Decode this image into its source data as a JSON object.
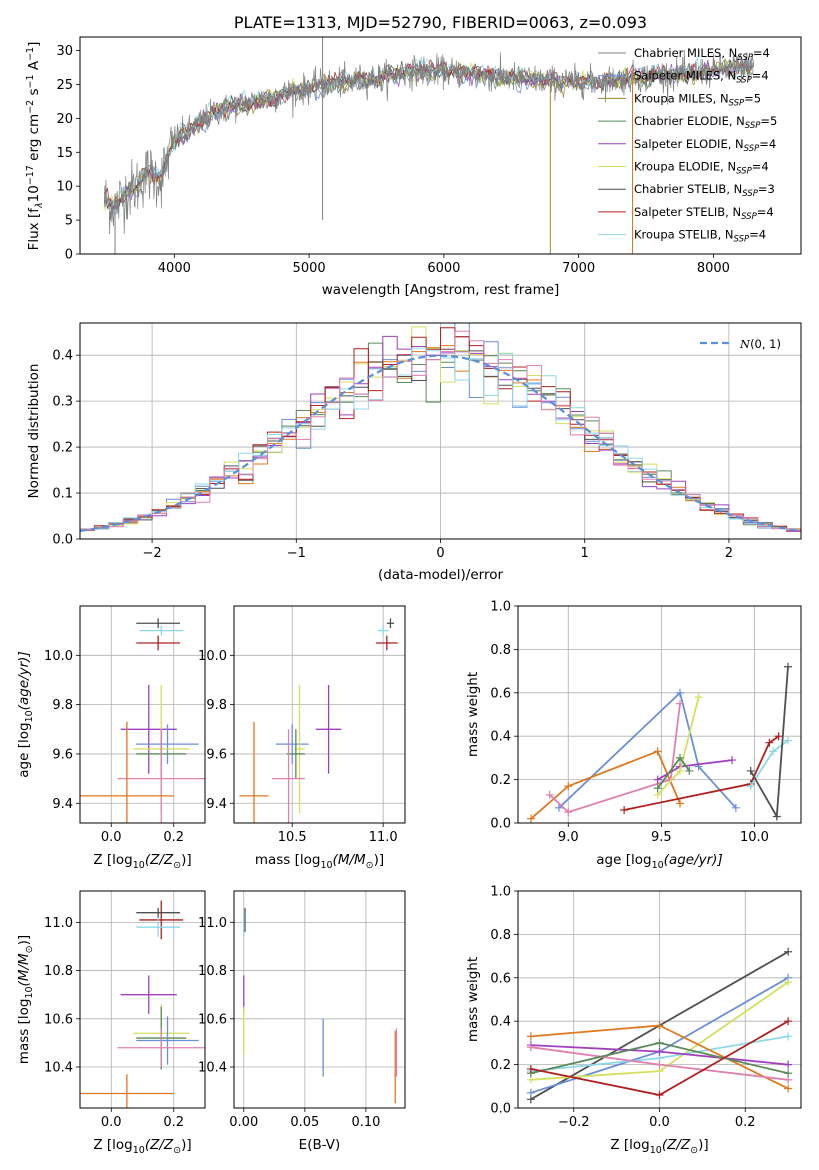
{
  "chart_data": [
    {
      "type": "line",
      "title": "PLATE=1313, MJD=52790, FIBERID=0063, z=0.093",
      "xlabel": "wavelength [Angstrom, rest frame]",
      "ylabel": "Flux [f_λ 10^-17 erg cm^-2 s^-1 A^-1]",
      "ylabel_parts": [
        "Flux [f",
        "λ",
        "10",
        "−17",
        " erg cm",
        "−2",
        " s",
        "−1",
        " A",
        "−1",
        "]"
      ],
      "xlim": [
        3300,
        8650
      ],
      "ylim": [
        0,
        32
      ],
      "xticks": [
        4000,
        5000,
        6000,
        7000,
        8000
      ],
      "yticks": [
        0,
        5,
        10,
        15,
        20,
        25,
        30
      ],
      "grid": false,
      "legend_placement": "upper-right",
      "series": [
        {
          "name": "Chabrier MILES, N_SSP=4",
          "label_main": "Chabrier MILES, N",
          "label_sub": "SSP",
          "label_tail": "=4",
          "color": "#808080"
        },
        {
          "name": "Salpeter MILES, N_SSP=4",
          "label_main": "Salpeter MILES, N",
          "label_sub": "SSP",
          "label_tail": "=4",
          "color": "#6a8fd8"
        },
        {
          "name": "Kroupa MILES, N_SSP=5",
          "label_main": "Kroupa MILES, N",
          "label_sub": "SSP",
          "label_tail": "=5",
          "color": "#9a8a28"
        },
        {
          "name": "Chabrier ELODIE, N_SSP=5",
          "label_main": "Chabrier ELODIE, N",
          "label_sub": "SSP",
          "label_tail": "=5",
          "color": "#5a8a5a"
        },
        {
          "name": "Salpeter ELODIE, N_SSP=4",
          "label_main": "Salpeter ELODIE, N",
          "label_sub": "SSP",
          "label_tail": "=4",
          "color": "#a040c0"
        },
        {
          "name": "Kroupa ELODIE, N_SSP=4",
          "label_main": "Kroupa ELODIE, N",
          "label_sub": "SSP",
          "label_tail": "=4",
          "color": "#d4e060"
        },
        {
          "name": "Chabrier STELIB, N_SSP=3",
          "label_main": "Chabrier STELIB, N",
          "label_sub": "SSP",
          "label_tail": "=3",
          "color": "#505050"
        },
        {
          "name": "Salpeter STELIB, N_SSP=4",
          "label_main": "Salpeter STELIB, N",
          "label_sub": "SSP",
          "label_tail": "=4",
          "color": "#b02020"
        },
        {
          "name": "Kroupa STELIB, N_SSP=4",
          "label_main": "Kroupa STELIB, N",
          "label_sub": "SSP",
          "label_tail": "=4",
          "color": "#8ed8e8"
        }
      ],
      "continuum": [
        [
          3480,
          8
        ],
        [
          3560,
          7
        ],
        [
          3640,
          9
        ],
        [
          3720,
          10
        ],
        [
          3800,
          12
        ],
        [
          3900,
          11
        ],
        [
          4000,
          17
        ],
        [
          4100,
          18
        ],
        [
          4300,
          21
        ],
        [
          4500,
          22
        ],
        [
          4700,
          23
        ],
        [
          4900,
          24
        ],
        [
          5100,
          25
        ],
        [
          5300,
          25.5
        ],
        [
          5500,
          26
        ],
        [
          5800,
          27
        ],
        [
          6000,
          27
        ],
        [
          6200,
          26.5
        ],
        [
          6500,
          26
        ],
        [
          6800,
          25.5
        ],
        [
          7000,
          25.5
        ],
        [
          7200,
          25.5
        ],
        [
          7400,
          26
        ],
        [
          7700,
          26.5
        ],
        [
          8000,
          27
        ],
        [
          8200,
          27.5
        ],
        [
          8300,
          27.8
        ]
      ]
    },
    {
      "type": "step",
      "xlabel": "(data-model)/error",
      "ylabel": "Normed distribution",
      "xlim": [
        -2.5,
        2.5
      ],
      "ylim": [
        0,
        0.47
      ],
      "xticks": [
        -2,
        -1,
        0,
        1,
        2
      ],
      "xtick_labels": [
        "−2",
        "−1",
        "0",
        "1",
        "2"
      ],
      "yticks": [
        0.0,
        0.1,
        0.2,
        0.3,
        0.4
      ],
      "ytick_labels": [
        "0.0",
        "0.1",
        "0.2",
        "0.3",
        "0.4"
      ],
      "grid": true,
      "legend_placement": "upper-right",
      "legend": "N(0,1)",
      "reference_curve": "standard normal",
      "reference_color": "#5b8fd9",
      "bin_width": 0.1
    },
    {
      "type": "scatter",
      "xlabel": "Z [log10(Z/Z⊙)]",
      "xlabel_main": "Z [log",
      "xlabel_rest": "(Z/Z",
      "xlabel_end": ")]",
      "ylabel": "age [log10(age/yr)]",
      "xlim": [
        -0.1,
        0.3
      ],
      "ylim": [
        9.32,
        10.2
      ],
      "xticks": [
        0.0,
        0.2
      ],
      "xtick_labels": [
        "0.0",
        "0.2"
      ],
      "yticks": [
        9.4,
        9.6,
        9.8,
        10.0
      ],
      "ytick_labels": [
        "9.4",
        "9.6",
        "9.8",
        "10.0"
      ],
      "grid": true,
      "points": [
        {
          "x": 0.15,
          "y": 10.13,
          "xerr": 0.07,
          "yerr": 0.02,
          "color": "#505050"
        },
        {
          "x": 0.16,
          "y": 10.1,
          "xerr": 0.07,
          "yerr": 0.02,
          "color": "#8ed8e8"
        },
        {
          "x": 0.15,
          "y": 10.05,
          "xerr": 0.07,
          "yerr": 0.03,
          "color": "#b02020"
        },
        {
          "x": 0.12,
          "y": 9.7,
          "xerr": 0.09,
          "yerr": 0.18,
          "color": "#a040c0"
        },
        {
          "x": 0.18,
          "y": 9.64,
          "xerr": 0.1,
          "yerr": 0.08,
          "color": "#6a8fd8"
        },
        {
          "x": 0.16,
          "y": 9.62,
          "xerr": 0.09,
          "yerr": 0.26,
          "color": "#d4e060"
        },
        {
          "x": 0.16,
          "y": 9.6,
          "xerr": 0.08,
          "yerr": 0.1,
          "color": "#5a8a5a"
        },
        {
          "x": 0.16,
          "y": 9.5,
          "xerr": 0.14,
          "yerr": 0.2,
          "color": "#e080b0"
        },
        {
          "x": 0.05,
          "y": 9.43,
          "xerr": 0.15,
          "yerr": 0.3,
          "color": "#e07820"
        }
      ]
    },
    {
      "type": "scatter",
      "xlabel": "mass [log10(M/M⊙)]",
      "xlabel_main": "mass [log",
      "xlabel_rest": "(M/M",
      "xlabel_end": ")]",
      "xlim": [
        10.18,
        11.12
      ],
      "ylim": [
        9.32,
        10.2
      ],
      "xticks": [
        10.5,
        11.0
      ],
      "xtick_labels": [
        "10.5",
        "11.0"
      ],
      "yticks": [
        9.4,
        9.6,
        9.8,
        10.0
      ],
      "ytick_labels": [
        "9.4",
        "9.6",
        "9.8",
        "10.0"
      ],
      "grid": true,
      "points": [
        {
          "x": 11.04,
          "y": 10.13,
          "xerr": 0.02,
          "yerr": 0.02,
          "color": "#505050"
        },
        {
          "x": 11.0,
          "y": 10.1,
          "xerr": 0.03,
          "yerr": 0.02,
          "color": "#8ed8e8"
        },
        {
          "x": 11.02,
          "y": 10.05,
          "xerr": 0.06,
          "yerr": 0.03,
          "color": "#b02020"
        },
        {
          "x": 10.7,
          "y": 9.7,
          "xerr": 0.07,
          "yerr": 0.18,
          "color": "#a040c0"
        },
        {
          "x": 10.5,
          "y": 9.64,
          "xerr": 0.09,
          "yerr": 0.08,
          "color": "#6a8fd8"
        },
        {
          "x": 10.54,
          "y": 9.62,
          "xerr": 0.03,
          "yerr": 0.26,
          "color": "#d4e060"
        },
        {
          "x": 10.52,
          "y": 9.6,
          "xerr": 0.05,
          "yerr": 0.1,
          "color": "#5a8a5a"
        },
        {
          "x": 10.48,
          "y": 9.5,
          "xerr": 0.09,
          "yerr": 0.2,
          "color": "#e080b0"
        },
        {
          "x": 10.29,
          "y": 9.43,
          "xerr": 0.08,
          "yerr": 0.3,
          "color": "#e07820"
        }
      ]
    },
    {
      "type": "line",
      "xlabel": "age [log10(age/yr)]",
      "xlabel_main": "age  [log",
      "xlabel_rest": "(age/yr)]",
      "ylabel": "mass weight",
      "xlim": [
        8.73,
        10.25
      ],
      "ylim": [
        0,
        1.0
      ],
      "xticks": [
        9.0,
        9.5,
        10.0
      ],
      "xtick_labels": [
        "9.0",
        "9.5",
        "10.0"
      ],
      "yticks": [
        0,
        0.2,
        0.4,
        0.6,
        0.8,
        1.0
      ],
      "ytick_labels": [
        "0.0",
        "0.2",
        "0.4",
        "0.6",
        "0.8",
        "1.0"
      ],
      "grid": true,
      "series": [
        {
          "color": "#6a8fd8",
          "x": [
            8.95,
            9.6,
            9.7,
            9.9
          ],
          "y": [
            0.07,
            0.6,
            0.26,
            0.07
          ]
        },
        {
          "color": "#e07820",
          "x": [
            8.8,
            9.0,
            9.48,
            9.6
          ],
          "y": [
            0.02,
            0.17,
            0.33,
            0.09
          ]
        },
        {
          "color": "#e080b0",
          "x": [
            8.9,
            9.0,
            9.55,
            9.6
          ],
          "y": [
            0.13,
            0.05,
            0.2,
            0.55
          ]
        },
        {
          "color": "#a040c0",
          "x": [
            9.48,
            9.6,
            9.88
          ],
          "y": [
            0.2,
            0.26,
            0.29
          ]
        },
        {
          "color": "#d4e060",
          "x": [
            9.48,
            9.6,
            9.7
          ],
          "y": [
            0.13,
            0.24,
            0.58
          ]
        },
        {
          "color": "#5a8a5a",
          "x": [
            9.48,
            9.6,
            9.65
          ],
          "y": [
            0.16,
            0.3,
            0.24
          ]
        },
        {
          "color": "#b02020",
          "x": [
            9.3,
            9.98,
            10.08,
            10.13
          ],
          "y": [
            0.06,
            0.18,
            0.37,
            0.4
          ]
        },
        {
          "color": "#8ed8e8",
          "x": [
            9.98,
            10.1,
            10.18
          ],
          "y": [
            0.17,
            0.33,
            0.38
          ]
        },
        {
          "color": "#505050",
          "x": [
            9.98,
            10.12,
            10.18
          ],
          "y": [
            0.24,
            0.03,
            0.72
          ]
        }
      ]
    },
    {
      "type": "scatter",
      "xlabel": "Z [log10(Z/Z⊙)]",
      "xlabel_main": "Z [log",
      "xlabel_rest": "(Z/Z",
      "xlabel_end": ")]",
      "ylabel": "mass [log10(M/M⊙)]",
      "xlim": [
        -0.1,
        0.3
      ],
      "ylim": [
        10.23,
        11.13
      ],
      "xticks": [
        0.0,
        0.2
      ],
      "xtick_labels": [
        "0.0",
        "0.2"
      ],
      "yticks": [
        10.4,
        10.6,
        10.8,
        11.0
      ],
      "ytick_labels": [
        "10.4",
        "10.6",
        "10.8",
        "11.0"
      ],
      "grid": true,
      "points": [
        {
          "x": 0.15,
          "y": 11.04,
          "xerr": 0.07,
          "yerr": 0.02,
          "color": "#505050"
        },
        {
          "x": 0.16,
          "y": 11.01,
          "xerr": 0.07,
          "yerr": 0.08,
          "color": "#b02020"
        },
        {
          "x": 0.15,
          "y": 10.98,
          "xerr": 0.07,
          "yerr": 0.04,
          "color": "#8ed8e8"
        },
        {
          "x": 0.12,
          "y": 10.7,
          "xerr": 0.09,
          "yerr": 0.08,
          "color": "#a040c0"
        },
        {
          "x": 0.16,
          "y": 10.54,
          "xerr": 0.09,
          "yerr": 0.12,
          "color": "#d4e060"
        },
        {
          "x": 0.16,
          "y": 10.52,
          "xerr": 0.08,
          "yerr": 0.13,
          "color": "#5a8a5a"
        },
        {
          "x": 0.18,
          "y": 10.51,
          "xerr": 0.1,
          "yerr": 0.1,
          "color": "#6a8fd8"
        },
        {
          "x": 0.16,
          "y": 10.48,
          "xerr": 0.14,
          "yerr": 0.08,
          "color": "#e080b0"
        },
        {
          "x": 0.05,
          "y": 10.29,
          "xerr": 0.15,
          "yerr": 0.08,
          "color": "#e07820"
        }
      ]
    },
    {
      "type": "scatter",
      "xlabel": "E(B-V)",
      "xlim": [
        -0.008,
        0.132
      ],
      "ylim": [
        10.23,
        11.13
      ],
      "xticks": [
        0.0,
        0.05,
        0.1
      ],
      "xtick_labels": [
        "0.00",
        "0.05",
        "0.10"
      ],
      "yticks": [
        10.4,
        10.6,
        10.8,
        11.0
      ],
      "ytick_labels": [
        "10.4",
        "10.6",
        "10.8",
        "11.0"
      ],
      "grid": true,
      "points": [
        {
          "x": 0.001,
          "y": 11.01,
          "xerr": 0.0,
          "yerr": 0.05,
          "color": "#505050"
        },
        {
          "x": 0.0,
          "y": 10.99,
          "xerr": 0.0,
          "yerr": 0.05,
          "color": "#8ed8e8"
        },
        {
          "x": 0.0,
          "y": 10.7,
          "xerr": 0.0,
          "yerr": 0.08,
          "color": "#a040c0"
        },
        {
          "x": 0.0,
          "y": 10.55,
          "xerr": 0.0,
          "yerr": 0.1,
          "color": "#d4e060"
        },
        {
          "x": 0.065,
          "y": 10.48,
          "xerr": 0.0,
          "yerr": 0.12,
          "color": "#6a8fd8"
        },
        {
          "x": 0.124,
          "y": 10.4,
          "xerr": 0.0,
          "yerr": 0.15,
          "color": "#e07820"
        },
        {
          "x": 0.125,
          "y": 10.46,
          "xerr": 0.0,
          "yerr": 0.1,
          "color": "#e080b0"
        }
      ]
    },
    {
      "type": "line",
      "xlabel": "Z [log10(Z/Z⊙)]",
      "xlabel_main": "Z [log",
      "xlabel_rest": "(Z/Z",
      "xlabel_end": ")]",
      "ylabel": "mass weight",
      "xlim": [
        -0.33,
        0.33
      ],
      "ylim": [
        0,
        1.0
      ],
      "xticks": [
        -0.2,
        0.0,
        0.2
      ],
      "xtick_labels": [
        "−0.2",
        "0.0",
        "0.2"
      ],
      "yticks": [
        0,
        0.2,
        0.4,
        0.6,
        0.8,
        1.0
      ],
      "ytick_labels": [
        "0.0",
        "0.2",
        "0.4",
        "0.6",
        "0.8",
        "1.0"
      ],
      "grid": true,
      "series": [
        {
          "color": "#505050",
          "x": [
            -0.3,
            0.0,
            0.3
          ],
          "y": [
            0.04,
            0.38,
            0.72
          ]
        },
        {
          "color": "#6a8fd8",
          "x": [
            -0.3,
            0.0,
            0.3
          ],
          "y": [
            0.07,
            0.26,
            0.6
          ]
        },
        {
          "color": "#d4e060",
          "x": [
            -0.3,
            0.0,
            0.3
          ],
          "y": [
            0.13,
            0.17,
            0.58
          ]
        },
        {
          "color": "#8ed8e8",
          "x": [
            -0.3,
            0.0,
            0.3
          ],
          "y": [
            0.17,
            0.23,
            0.33
          ]
        },
        {
          "color": "#e07820",
          "x": [
            -0.3,
            0.0,
            0.3
          ],
          "y": [
            0.33,
            0.38,
            0.09
          ]
        },
        {
          "color": "#a040c0",
          "x": [
            -0.3,
            0.0,
            0.3
          ],
          "y": [
            0.29,
            0.26,
            0.2
          ]
        },
        {
          "color": "#e080b0",
          "x": [
            -0.3,
            0.0,
            0.3
          ],
          "y": [
            0.28,
            0.2,
            0.13
          ]
        },
        {
          "color": "#5a8a5a",
          "x": [
            -0.3,
            0.0,
            0.3
          ],
          "y": [
            0.16,
            0.3,
            0.16
          ]
        },
        {
          "color": "#b02020",
          "x": [
            -0.3,
            0.0,
            0.3
          ],
          "y": [
            0.18,
            0.06,
            0.4
          ]
        }
      ]
    }
  ]
}
